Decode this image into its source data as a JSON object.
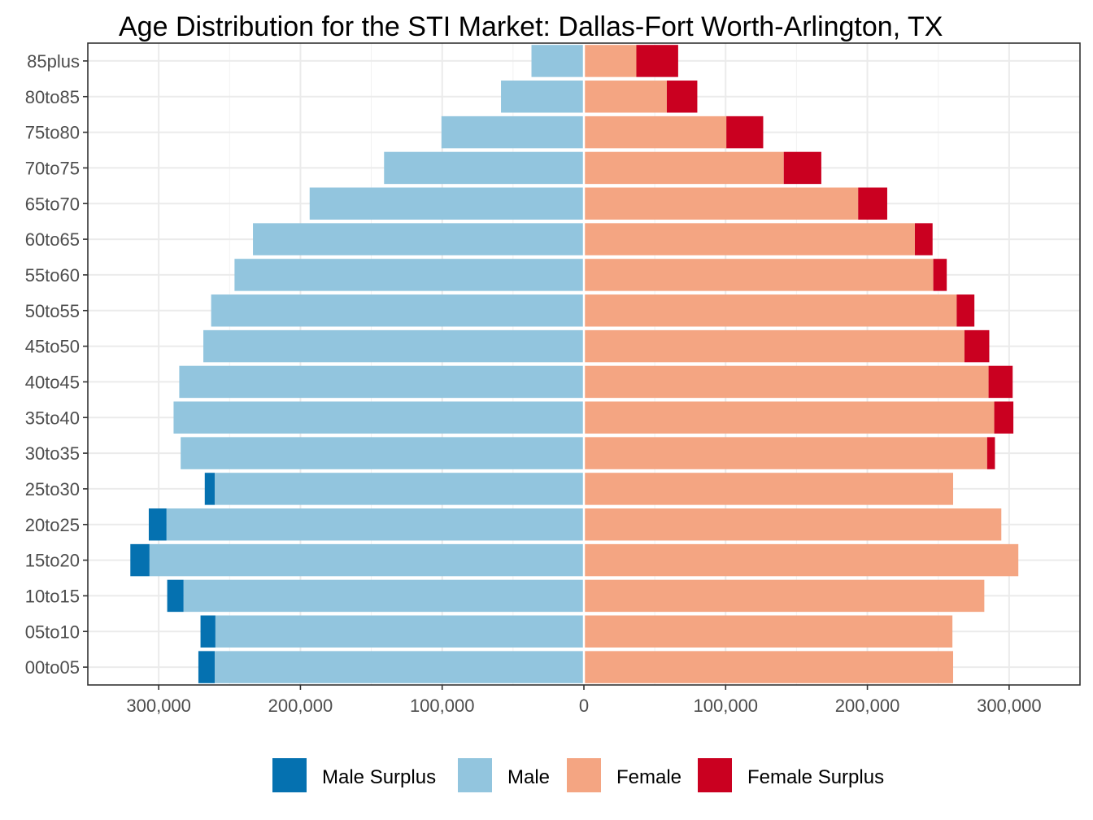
{
  "chart_data": {
    "type": "bar",
    "orientation": "horizontal",
    "layout": "population-pyramid",
    "title": "Age Distribution for the STI Market: Dallas-Fort Worth-Arlington, TX",
    "categories": [
      "00to05",
      "05to10",
      "10to15",
      "15to20",
      "20to25",
      "25to30",
      "30to35",
      "35to40",
      "40to45",
      "45to50",
      "50to55",
      "55to60",
      "60to65",
      "65to70",
      "70to75",
      "75to80",
      "80to85",
      "85plus"
    ],
    "series": [
      {
        "name": "Male Surplus",
        "color": "#0571B0",
        "side": "left",
        "values": [
          11500,
          10500,
          11500,
          13500,
          12500,
          7000,
          0,
          0,
          0,
          0,
          0,
          0,
          0,
          0,
          0,
          0,
          0,
          0
        ]
      },
      {
        "name": "Male",
        "color": "#92C5DE",
        "side": "left",
        "values": [
          260500,
          260000,
          282500,
          306500,
          294500,
          260500,
          284500,
          289500,
          285500,
          268500,
          263000,
          246500,
          233500,
          193500,
          141000,
          100500,
          58500,
          37000
        ]
      },
      {
        "name": "Female",
        "color": "#F4A582",
        "side": "right",
        "values": [
          260500,
          260000,
          282500,
          306500,
          294500,
          260500,
          284500,
          289500,
          285500,
          268500,
          263000,
          246500,
          233500,
          193500,
          141000,
          100500,
          58500,
          37000
        ]
      },
      {
        "name": "Female Surplus",
        "color": "#CA0020",
        "side": "right",
        "values": [
          0,
          0,
          0,
          0,
          0,
          0,
          5500,
          13500,
          17000,
          17500,
          12500,
          9500,
          12500,
          20500,
          26500,
          26000,
          21500,
          29500
        ]
      }
    ],
    "xlim": [
      -350000,
      350000
    ],
    "x_ticks": [
      -300000,
      -200000,
      -100000,
      0,
      100000,
      200000,
      300000
    ],
    "x_tick_labels": [
      "300,000",
      "200,000",
      "100,000",
      "0",
      "100,000",
      "200,000",
      "300,000"
    ],
    "xlabel": "",
    "ylabel": "",
    "grid": true,
    "legend_position": "bottom",
    "legend": [
      "Male Surplus",
      "Male",
      "Female",
      "Female Surplus"
    ]
  }
}
